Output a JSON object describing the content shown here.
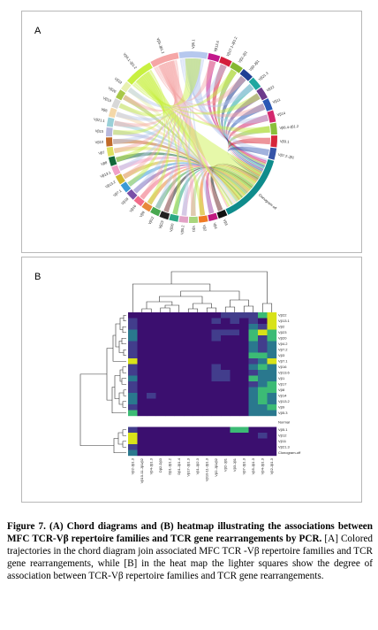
{
  "panel_a": {
    "label": "A",
    "chord_segments": [
      {
        "label": "Vβ5.1",
        "color": "#b6c8ee"
      },
      {
        "label": "Vβ13.6",
        "color": "#c2188c"
      },
      {
        "label": "Vβ17.1-Jβ1.2",
        "color": "#d41e3c"
      },
      {
        "label": "Vβ2-Jβ1",
        "color": "#86b832"
      },
      {
        "label": "Vβ3-Jβ1",
        "color": "#1e3f94"
      },
      {
        "label": "Vβ21.3",
        "color": "#20a7a0"
      },
      {
        "label": "Vβ22",
        "color": "#6c3a8c"
      },
      {
        "label": "Vβ11",
        "color": "#2a57b4"
      },
      {
        "label": "Vβ14",
        "color": "#d4286e"
      },
      {
        "label": "Vβ6.4-Jβ1.2",
        "color": "#8abf3a"
      },
      {
        "label": "Vβ3.1",
        "color": "#d6263a"
      },
      {
        "label": "Vβ7.2-Jβ1",
        "color": "#3654a8"
      },
      {
        "label": "Clonogram-off",
        "color": "#0f8c8c"
      },
      {
        "label": "Vβ3",
        "color": "#111111"
      },
      {
        "label": "Vβ4",
        "color": "#c01880"
      },
      {
        "label": "Vβ2",
        "color": "#f07a22"
      },
      {
        "label": "Vβ1",
        "color": "#a8d67c"
      },
      {
        "label": "Vβ5.2",
        "color": "#e2a2c6"
      },
      {
        "label": "Vβ20",
        "color": "#2aa884"
      },
      {
        "label": "Vβ23",
        "color": "#222222"
      },
      {
        "label": "Vβ12",
        "color": "#48a850"
      },
      {
        "label": "Vβ9",
        "color": "#e8883a"
      },
      {
        "label": "Vβ16",
        "color": "#f26c8a"
      },
      {
        "label": "Vβ18",
        "color": "#7a50a8"
      },
      {
        "label": "Vβ7.1",
        "color": "#3a9ad6"
      },
      {
        "label": "Vβ13.2",
        "color": "#d0b830"
      },
      {
        "label": "Vβ13.1",
        "color": "#f0a0c8"
      },
      {
        "label": "Vβ8",
        "color": "#14683a"
      },
      {
        "label": "Vβ7",
        "color": "#dde060"
      },
      {
        "label": "Vβ10",
        "color": "#c06a28"
      },
      {
        "label": "Vβ15",
        "color": "#b8b8dc"
      },
      {
        "label": "Vβ21.1",
        "color": "#9ad0d8"
      },
      {
        "label": "Vβ6",
        "color": "#f4d8a8"
      },
      {
        "label": "Vβ19",
        "color": "#d8d8d8"
      },
      {
        "label": "Vβ20",
        "color": "#a8c848"
      },
      {
        "label": "Vβ22",
        "color": "#e8f0b0"
      },
      {
        "label": "Vβ4.1-Jβ1.2",
        "color": "#c8f040"
      },
      {
        "label": "Vβ5-Jβ1.2",
        "color": "#f5a6a6"
      }
    ]
  },
  "panel_b": {
    "label": "B",
    "row_labels": [
      "Vβ22",
      "Vβ13.1",
      "Vβ2",
      "Vβ23",
      "Vβ20",
      "Vβ4.2",
      "Vβ7.2",
      "Vβ3",
      "Vβ7.1",
      "Vβ16",
      "Vβ13.6",
      "Vβ1",
      "Vβ17",
      "Vβ8",
      "Vβ14",
      "Vβ13.2",
      "Vβ9",
      "Vβ5.3",
      "Normal",
      "Vβ5.1",
      "Vβ12",
      "Vβ11",
      "Vβ21.3",
      "Clonogram-off"
    ],
    "col_labels": [
      "Vβ2-Jβ1.3",
      "Vβ10-11-Jβ1/β2",
      "Vβ4-Jβ1.3",
      "Dβ2-Dβ3",
      "Dβ1-Jβ1.2",
      "Dβ1-Jβ1.4",
      "Vβ17-Jβ1.3",
      "Vβ1-Jβ2.3",
      "Vβ10-11-Jβ1.3",
      "Vβ2-Jβ1/β2",
      "Vβ2-Jβ1",
      "Vβ3-Jβ1",
      "Vβ7-Jβ1.3",
      "Vβ5-Jβ1.3",
      "Vβ4-Jβ1.3",
      "Vβ2-Jβ1.3"
    ],
    "heatmap": [
      [
        0,
        0,
        0,
        0,
        0,
        0,
        0,
        0,
        0,
        0,
        1,
        1,
        1,
        1,
        3,
        4
      ],
      [
        1,
        0,
        0,
        0,
        0,
        0,
        0,
        0,
        0,
        1,
        0,
        1,
        0,
        1,
        0,
        4
      ],
      [
        1,
        0,
        0,
        0,
        0,
        0,
        0,
        0,
        0,
        0,
        0,
        0,
        0,
        2,
        1,
        4
      ],
      [
        2,
        0,
        0,
        0,
        0,
        0,
        0,
        0,
        0,
        1,
        1,
        1,
        0,
        3,
        4,
        3
      ],
      [
        2,
        0,
        0,
        0,
        0,
        0,
        0,
        0,
        0,
        1,
        0,
        0,
        0,
        3,
        1,
        3
      ],
      [
        1,
        0,
        0,
        0,
        0,
        0,
        0,
        0,
        0,
        0,
        0,
        0,
        0,
        2,
        1,
        2
      ],
      [
        1,
        0,
        0,
        0,
        0,
        0,
        0,
        0,
        0,
        0,
        0,
        0,
        0,
        2,
        1,
        2
      ],
      [
        1,
        0,
        0,
        0,
        0,
        0,
        0,
        0,
        0,
        0,
        0,
        0,
        0,
        3,
        3,
        2
      ],
      [
        4,
        0,
        0,
        0,
        0,
        0,
        0,
        0,
        0,
        0,
        0,
        0,
        0,
        1,
        2,
        4
      ],
      [
        1,
        0,
        0,
        0,
        0,
        0,
        0,
        0,
        0,
        1,
        0,
        0,
        0,
        2,
        3,
        2
      ],
      [
        1,
        0,
        0,
        0,
        0,
        0,
        0,
        0,
        0,
        1,
        1,
        0,
        0,
        1,
        2,
        2
      ],
      [
        2,
        0,
        0,
        0,
        0,
        0,
        0,
        0,
        0,
        1,
        1,
        0,
        0,
        3,
        2,
        2
      ],
      [
        1,
        0,
        0,
        0,
        0,
        0,
        0,
        0,
        0,
        0,
        0,
        0,
        0,
        1,
        2,
        3
      ],
      [
        1,
        0,
        0,
        0,
        0,
        0,
        0,
        0,
        0,
        0,
        0,
        0,
        0,
        2,
        3,
        3
      ],
      [
        2,
        0,
        1,
        0,
        0,
        0,
        0,
        0,
        0,
        0,
        0,
        0,
        0,
        2,
        3,
        2
      ],
      [
        2,
        0,
        0,
        0,
        0,
        0,
        0,
        0,
        0,
        0,
        0,
        0,
        0,
        2,
        3,
        2
      ],
      [
        1,
        0,
        0,
        0,
        0,
        0,
        0,
        0,
        0,
        0,
        0,
        0,
        0,
        2,
        2,
        3
      ],
      [
        3,
        0,
        0,
        0,
        0,
        0,
        0,
        0,
        0,
        0,
        0,
        0,
        0,
        2,
        2,
        2
      ],
      [
        0,
        0,
        0,
        0,
        0,
        0,
        0,
        0,
        0,
        0,
        0,
        0,
        0,
        0,
        0,
        0
      ],
      [
        1,
        0,
        0,
        0,
        0,
        0,
        0,
        0,
        0,
        0,
        0,
        3,
        3,
        0,
        0,
        0
      ],
      [
        4,
        0,
        0,
        0,
        0,
        0,
        0,
        0,
        0,
        0,
        0,
        0,
        0,
        0,
        1,
        0
      ],
      [
        4,
        0,
        0,
        0,
        0,
        0,
        0,
        0,
        0,
        0,
        0,
        0,
        0,
        0,
        0,
        0
      ],
      [
        1,
        0,
        0,
        0,
        0,
        0,
        0,
        0,
        0,
        0,
        0,
        0,
        0,
        0,
        0,
        0
      ],
      [
        2,
        0,
        0,
        0,
        0,
        0,
        0,
        0,
        0,
        0,
        0,
        0,
        0,
        0,
        0,
        0
      ]
    ],
    "palette": [
      "#3b0f6f",
      "#423d8c",
      "#2a788e",
      "#3cbb75",
      "#d8e219"
    ]
  },
  "caption": {
    "label": "Figure 7.",
    "bold_text": " (A) Chord diagrams and (B) heatmap illustrating the associations between MFC TCR-Vβ repertoire families and TCR gene rearrangements by PCR.",
    "body": " [A] Colored trajectories in the chord diagram join associated MFC TCR -Vβ repertoire families and TCR gene rearrangements, while [B] in the heat map the lighter squares show the degree of association between TCR-Vβ repertoire families and TCR gene rearrangements."
  }
}
